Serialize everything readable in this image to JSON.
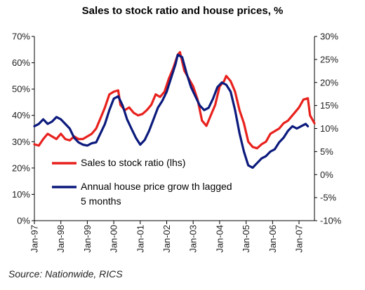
{
  "chart_data": {
    "type": "line",
    "title": "Sales to stock ratio and house prices, %",
    "x_tick_labels": [
      "Jan-97",
      "Jan-98",
      "Jan-99",
      "Jan-00",
      "Jan-01",
      "Jan-02",
      "Jan-03",
      "Jan-04",
      "Jan-05",
      "Jan-06",
      "Jan-07"
    ],
    "x_range": [
      "1997-01",
      "2007-08"
    ],
    "left_axis": {
      "ylim": [
        0,
        70
      ],
      "ticks": [
        "0%",
        "10%",
        "20%",
        "30%",
        "40%",
        "50%",
        "60%",
        "70%"
      ]
    },
    "right_axis": {
      "ylim": [
        -10,
        30
      ],
      "ticks": [
        "-10%",
        "-5%",
        "0%",
        "5%",
        "10%",
        "15%",
        "20%",
        "25%",
        "30%"
      ]
    },
    "grid": false,
    "legend_position": "center-left",
    "series": [
      {
        "name": "Sales to stock ratio (lhs)",
        "axis": "left",
        "color": "#e8211d",
        "points": [
          [
            "1997-01",
            29
          ],
          [
            "1997-03",
            28.5
          ],
          [
            "1997-05",
            31
          ],
          [
            "1997-07",
            33
          ],
          [
            "1997-09",
            32
          ],
          [
            "1997-11",
            31
          ],
          [
            "1998-01",
            33
          ],
          [
            "1998-03",
            31
          ],
          [
            "1998-05",
            30.5
          ],
          [
            "1998-07",
            32
          ],
          [
            "1998-09",
            31
          ],
          [
            "1998-11",
            31
          ],
          [
            "1999-01",
            32
          ],
          [
            "1999-03",
            33
          ],
          [
            "1999-05",
            35
          ],
          [
            "1999-07",
            39
          ],
          [
            "1999-09",
            43
          ],
          [
            "1999-11",
            48
          ],
          [
            "2000-01",
            49
          ],
          [
            "2000-03",
            49.5
          ],
          [
            "2000-04",
            44
          ],
          [
            "2000-06",
            42
          ],
          [
            "2000-08",
            43
          ],
          [
            "2000-10",
            41
          ],
          [
            "2000-12",
            40
          ],
          [
            "2001-02",
            40.5
          ],
          [
            "2001-04",
            42
          ],
          [
            "2001-06",
            44
          ],
          [
            "2001-08",
            48
          ],
          [
            "2001-10",
            47
          ],
          [
            "2001-12",
            49
          ],
          [
            "2002-02",
            54
          ],
          [
            "2002-04",
            58
          ],
          [
            "2002-06",
            63
          ],
          [
            "2002-07",
            64
          ],
          [
            "2002-09",
            57
          ],
          [
            "2002-11",
            54
          ],
          [
            "2003-01",
            51
          ],
          [
            "2003-03",
            46
          ],
          [
            "2003-05",
            38
          ],
          [
            "2003-07",
            36
          ],
          [
            "2003-09",
            40
          ],
          [
            "2003-11",
            44
          ],
          [
            "2004-01",
            51
          ],
          [
            "2004-03",
            53
          ],
          [
            "2004-04",
            55
          ],
          [
            "2004-06",
            53
          ],
          [
            "2004-08",
            49
          ],
          [
            "2004-10",
            42
          ],
          [
            "2004-12",
            37
          ],
          [
            "2005-02",
            30
          ],
          [
            "2005-04",
            28
          ],
          [
            "2005-06",
            27.5
          ],
          [
            "2005-08",
            29
          ],
          [
            "2005-10",
            30
          ],
          [
            "2005-12",
            33
          ],
          [
            "2006-02",
            34
          ],
          [
            "2006-04",
            35
          ],
          [
            "2006-06",
            37
          ],
          [
            "2006-08",
            38
          ],
          [
            "2006-10",
            40
          ],
          [
            "2006-12",
            42
          ],
          [
            "2007-01",
            43
          ],
          [
            "2007-03",
            46
          ],
          [
            "2007-05",
            46.5
          ],
          [
            "2007-06",
            40
          ],
          [
            "2007-08",
            37
          ]
        ]
      },
      {
        "name": "Annual house price growth lagged 5 months",
        "axis": "right",
        "color": "#0b1a7c",
        "points": [
          [
            "1997-01",
            10.5
          ],
          [
            "1997-03",
            11
          ],
          [
            "1997-05",
            12
          ],
          [
            "1997-07",
            11
          ],
          [
            "1997-09",
            11.5
          ],
          [
            "1997-11",
            12.5
          ],
          [
            "1998-01",
            12
          ],
          [
            "1998-03",
            11
          ],
          [
            "1998-05",
            10
          ],
          [
            "1998-07",
            8
          ],
          [
            "1998-09",
            7
          ],
          [
            "1998-11",
            6.5
          ],
          [
            "1999-01",
            6.3
          ],
          [
            "1999-03",
            6.8
          ],
          [
            "1999-05",
            7
          ],
          [
            "1999-07",
            9
          ],
          [
            "1999-09",
            11
          ],
          [
            "1999-11",
            14
          ],
          [
            "2000-01",
            16.5
          ],
          [
            "2000-03",
            17
          ],
          [
            "2000-05",
            15
          ],
          [
            "2000-07",
            12
          ],
          [
            "2000-09",
            10
          ],
          [
            "2000-11",
            8
          ],
          [
            "2001-01",
            6.5
          ],
          [
            "2001-03",
            7.5
          ],
          [
            "2001-05",
            9.5
          ],
          [
            "2001-07",
            12
          ],
          [
            "2001-09",
            14.5
          ],
          [
            "2001-11",
            16
          ],
          [
            "2002-01",
            18
          ],
          [
            "2002-03",
            21
          ],
          [
            "2002-05",
            24
          ],
          [
            "2002-06",
            26
          ],
          [
            "2002-08",
            25.5
          ],
          [
            "2002-10",
            22
          ],
          [
            "2002-12",
            19
          ],
          [
            "2003-02",
            17
          ],
          [
            "2003-04",
            15
          ],
          [
            "2003-06",
            14
          ],
          [
            "2003-08",
            14.5
          ],
          [
            "2003-10",
            16.5
          ],
          [
            "2003-12",
            19
          ],
          [
            "2004-02",
            20
          ],
          [
            "2004-04",
            19.5
          ],
          [
            "2004-06",
            18
          ],
          [
            "2004-08",
            14
          ],
          [
            "2004-10",
            9
          ],
          [
            "2004-12",
            5
          ],
          [
            "2005-02",
            2
          ],
          [
            "2005-04",
            1.5
          ],
          [
            "2005-06",
            2.5
          ],
          [
            "2005-08",
            3.5
          ],
          [
            "2005-10",
            4
          ],
          [
            "2005-12",
            5
          ],
          [
            "2006-02",
            5.5
          ],
          [
            "2006-04",
            7
          ],
          [
            "2006-06",
            8
          ],
          [
            "2006-08",
            9.5
          ],
          [
            "2006-10",
            10.5
          ],
          [
            "2006-12",
            10
          ],
          [
            "2007-02",
            10.5
          ],
          [
            "2007-04",
            11
          ],
          [
            "2007-05",
            10.5
          ]
        ]
      }
    ],
    "source": "Source: Nationwide, RICS"
  },
  "legend": {
    "items": [
      {
        "lines": [
          "Sales to stock ratio (lhs)"
        ],
        "color": "#e8211d"
      },
      {
        "lines": [
          "Annual house price grow th lagged",
          "5 months"
        ],
        "color": "#0b1a7c"
      }
    ]
  }
}
